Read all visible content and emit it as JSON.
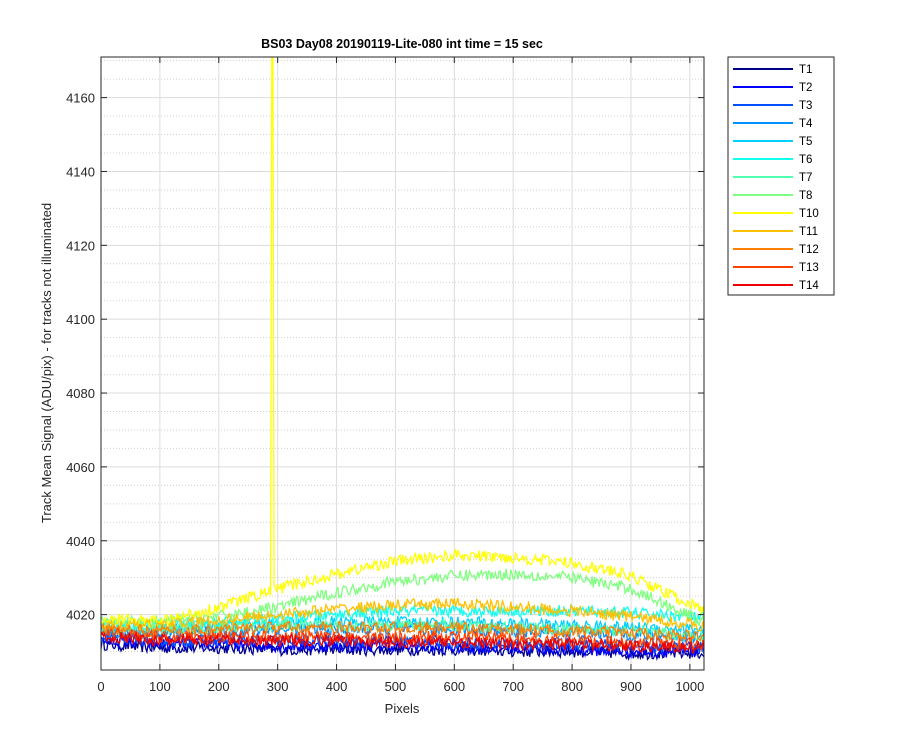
{
  "chart_data": {
    "type": "line",
    "title": "BS03 Day08 20190119-Lite-080 int time = 15 sec",
    "xlabel": "Pixels",
    "ylabel": "Track Mean Signal (ADU/pix) - for tracks not illuminated",
    "xlim": [
      0,
      1024
    ],
    "ylim": [
      4005,
      4171
    ],
    "xticks": [
      0,
      100,
      200,
      300,
      400,
      500,
      600,
      700,
      800,
      900,
      1000
    ],
    "yticks": [
      4020,
      4040,
      4060,
      4080,
      4100,
      4120,
      4140,
      4160
    ],
    "grid": true,
    "minor_grid_y": true,
    "legend_position": "outside-right-top",
    "spike": {
      "series": "T10",
      "x": 291,
      "y_top": 4171
    },
    "series": [
      {
        "name": "T1",
        "color": "#00008f",
        "x": [
          0,
          100,
          200,
          300,
          400,
          500,
          600,
          700,
          800,
          900,
          1024
        ],
        "values": [
          4012,
          4011,
          4011,
          4010.5,
          4010.5,
          4010.5,
          4010.5,
          4010,
          4010,
          4009.5,
          4009.5
        ]
      },
      {
        "name": "T2",
        "color": "#0000ff",
        "x": [
          0,
          100,
          200,
          300,
          400,
          500,
          600,
          700,
          800,
          900,
          1024
        ],
        "values": [
          4013,
          4012,
          4012,
          4011.5,
          4011.5,
          4011.5,
          4011,
          4011,
          4010.5,
          4010,
          4010
        ]
      },
      {
        "name": "T3",
        "color": "#0050ff",
        "x": [
          0,
          100,
          200,
          300,
          400,
          500,
          600,
          700,
          800,
          900,
          1024
        ],
        "values": [
          4014,
          4013,
          4013,
          4013,
          4013,
          4013,
          4012.5,
          4012,
          4012,
          4011.5,
          4011
        ]
      },
      {
        "name": "T4",
        "color": "#0090ff",
        "x": [
          0,
          100,
          200,
          300,
          400,
          500,
          600,
          700,
          800,
          900,
          1024
        ],
        "values": [
          4015,
          4015,
          4015.5,
          4016,
          4016,
          4016,
          4016,
          4015.5,
          4015,
          4014.5,
          4014
        ]
      },
      {
        "name": "T5",
        "color": "#00d0ff",
        "x": [
          0,
          100,
          200,
          300,
          400,
          500,
          600,
          700,
          800,
          900,
          1024
        ],
        "values": [
          4016,
          4016,
          4017,
          4017.5,
          4018,
          4018,
          4018,
          4017.5,
          4017,
          4016.5,
          4016
        ]
      },
      {
        "name": "T6",
        "color": "#10ffef",
        "x": [
          0,
          100,
          200,
          300,
          400,
          500,
          600,
          700,
          800,
          900,
          1024
        ],
        "values": [
          4017,
          4017.5,
          4018,
          4019,
          4020,
          4021,
          4021,
          4021,
          4021,
          4020.5,
          4019
        ]
      },
      {
        "name": "T7",
        "color": "#50ffaf",
        "x": [
          0,
          100,
          200,
          300,
          400,
          500,
          600,
          700,
          800,
          900,
          1024
        ],
        "values": [
          4016,
          4016,
          4016.5,
          4017,
          4017,
          4017,
          4017,
          4016.5,
          4016,
          4015.5,
          4014
        ]
      },
      {
        "name": "T8",
        "color": "#80ff80",
        "x": [
          0,
          100,
          200,
          300,
          400,
          500,
          600,
          700,
          800,
          900,
          1024
        ],
        "values": [
          4018,
          4018,
          4019.5,
          4022,
          4026,
          4029,
          4030.5,
          4031,
          4030,
          4027,
          4018
        ]
      },
      {
        "name": "T10",
        "color": "#ffff00",
        "x": [
          0,
          100,
          200,
          300,
          400,
          500,
          600,
          700,
          800,
          900,
          1024
        ],
        "values": [
          4019,
          4018,
          4022,
          4027,
          4031,
          4034.5,
          4036,
          4035.5,
          4034,
          4030.5,
          4021
        ]
      },
      {
        "name": "T11",
        "color": "#ffc000",
        "x": [
          0,
          100,
          200,
          300,
          400,
          500,
          600,
          700,
          800,
          900,
          1024
        ],
        "values": [
          4017,
          4017,
          4018.5,
          4020,
          4021.5,
          4022.5,
          4023,
          4022,
          4021,
          4019.5,
          4017
        ]
      },
      {
        "name": "T12",
        "color": "#ff8000",
        "x": [
          0,
          100,
          200,
          300,
          400,
          500,
          600,
          700,
          800,
          900,
          1024
        ],
        "values": [
          4016,
          4015.5,
          4016,
          4016.5,
          4016.5,
          4016.5,
          4016.5,
          4016,
          4015.5,
          4015,
          4014
        ]
      },
      {
        "name": "T13",
        "color": "#ff4000",
        "x": [
          0,
          100,
          200,
          300,
          400,
          500,
          600,
          700,
          800,
          900,
          1024
        ],
        "values": [
          4015,
          4014,
          4014,
          4014,
          4014,
          4014,
          4014,
          4013.5,
          4013,
          4012.5,
          4012
        ]
      },
      {
        "name": "T14",
        "color": "#ef0000",
        "x": [
          0,
          100,
          200,
          300,
          400,
          500,
          600,
          700,
          800,
          900,
          1024
        ],
        "values": [
          4014,
          4013,
          4013,
          4013,
          4013,
          4012.5,
          4012.5,
          4012,
          4012,
          4011.5,
          4011
        ]
      }
    ]
  }
}
